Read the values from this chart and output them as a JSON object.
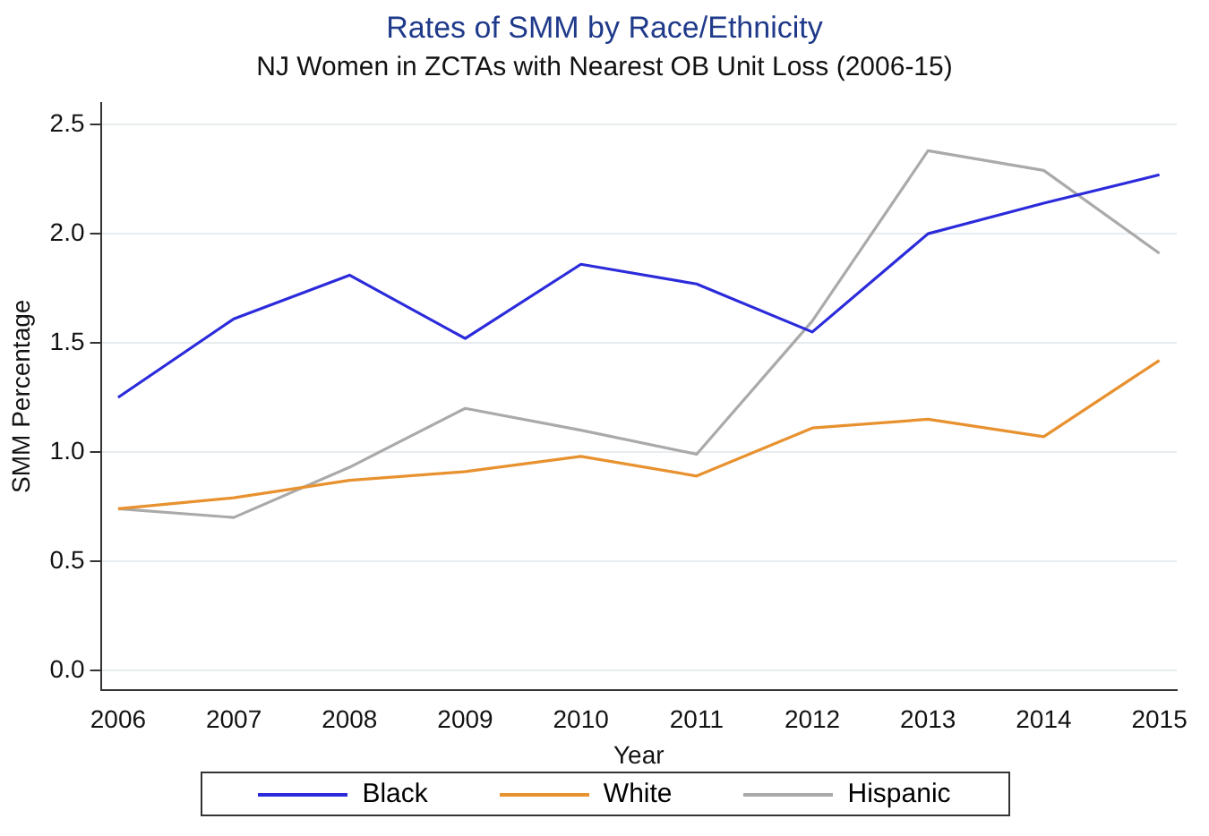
{
  "chart_data": {
    "type": "line",
    "title": "Rates of SMM by Race/Ethnicity",
    "subtitle": "NJ Women in ZCTAs with Nearest OB Unit Loss (2006-15)",
    "xlabel": "Year",
    "ylabel": "SMM Percentage",
    "x": [
      2006,
      2007,
      2008,
      2009,
      2010,
      2011,
      2012,
      2013,
      2014,
      2015
    ],
    "series": [
      {
        "name": "Black",
        "color": "#2b2bdb",
        "values": [
          1.25,
          1.61,
          1.81,
          1.52,
          1.86,
          1.77,
          1.55,
          2.0,
          2.14,
          2.27
        ]
      },
      {
        "name": "White",
        "color": "#e8912f",
        "values": [
          0.74,
          0.79,
          0.87,
          0.91,
          0.98,
          0.89,
          1.11,
          1.15,
          1.07,
          1.42
        ]
      },
      {
        "name": "Hispanic",
        "color": "#aaaaaa",
        "values": [
          0.74,
          0.7,
          0.93,
          1.2,
          1.1,
          0.99,
          1.6,
          2.38,
          2.29,
          1.91
        ]
      }
    ],
    "xlim": [
      2005.85,
      2015.15
    ],
    "xticks": [
      2006,
      2007,
      2008,
      2009,
      2010,
      2011,
      2012,
      2013,
      2014,
      2015
    ],
    "ylim": [
      -0.09,
      2.6
    ],
    "yticks": [
      {
        "value": 0,
        "label": "0.0"
      },
      {
        "value": 0.5,
        "label": "0.5"
      },
      {
        "value": 1,
        "label": "1.0"
      },
      {
        "value": 1.5,
        "label": "1.5"
      },
      {
        "value": 2,
        "label": "2.0"
      },
      {
        "value": 2.5,
        "label": "2.5"
      }
    ],
    "grid": "y",
    "legend": "bottom",
    "marker": "none",
    "line_style": "solid"
  }
}
